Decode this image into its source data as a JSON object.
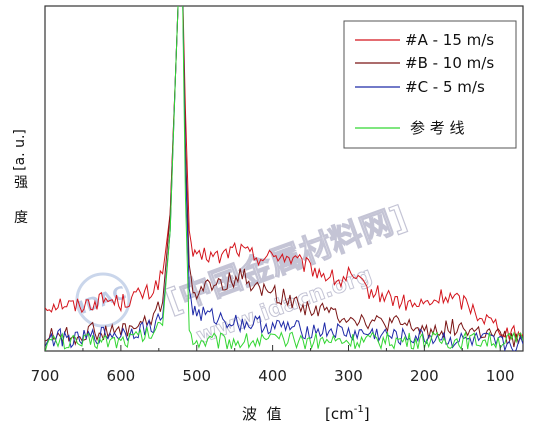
{
  "chart_data": {
    "type": "line",
    "ylabel": "[a. u.]",
    "ylabel_cn": [
      "强",
      "度"
    ],
    "xlabel_cn": "波  值",
    "xlabel_unit": "[cm",
    "xlabel_sup": "-1",
    "xlabel_close": "]",
    "x_reversed": true,
    "xlim": [
      700,
      70
    ],
    "ylim": [
      0,
      100
    ],
    "x_ticks": [
      700,
      600,
      500,
      400,
      300,
      200,
      100
    ],
    "grid": false,
    "legend_position": "top-right",
    "series": [
      {
        "name": "#A - 15 m/s",
        "color": "#d4141c",
        "points": [
          [
            700,
            13
          ],
          [
            680,
            14
          ],
          [
            660,
            13
          ],
          [
            640,
            14
          ],
          [
            620,
            15
          ],
          [
            600,
            14
          ],
          [
            580,
            16
          ],
          [
            560,
            17
          ],
          [
            545,
            22
          ],
          [
            535,
            40
          ],
          [
            528,
            80
          ],
          [
            523,
            110
          ],
          [
            519,
            110
          ],
          [
            515,
            70
          ],
          [
            510,
            35
          ],
          [
            505,
            28
          ],
          [
            500,
            26
          ],
          [
            490,
            28
          ],
          [
            470,
            27
          ],
          [
            450,
            30
          ],
          [
            430,
            28
          ],
          [
            410,
            27
          ],
          [
            390,
            28
          ],
          [
            370,
            26
          ],
          [
            350,
            24
          ],
          [
            330,
            22
          ],
          [
            310,
            20
          ],
          [
            300,
            22
          ],
          [
            290,
            20
          ],
          [
            270,
            17
          ],
          [
            250,
            16
          ],
          [
            230,
            14
          ],
          [
            210,
            13
          ],
          [
            190,
            14
          ],
          [
            175,
            16
          ],
          [
            160,
            15
          ],
          [
            145,
            14
          ],
          [
            130,
            11
          ],
          [
            115,
            9
          ],
          [
            100,
            7
          ],
          [
            85,
            5
          ],
          [
            70,
            5
          ]
        ]
      },
      {
        "name": "#B - 10 m/s",
        "color": "#7a1414",
        "points": [
          [
            700,
            4
          ],
          [
            680,
            5
          ],
          [
            660,
            4
          ],
          [
            640,
            6
          ],
          [
            620,
            5
          ],
          [
            600,
            6
          ],
          [
            580,
            7
          ],
          [
            560,
            9
          ],
          [
            545,
            14
          ],
          [
            535,
            40
          ],
          [
            528,
            80
          ],
          [
            523,
            110
          ],
          [
            519,
            110
          ],
          [
            515,
            60
          ],
          [
            510,
            25
          ],
          [
            505,
            18
          ],
          [
            500,
            17
          ],
          [
            480,
            19
          ],
          [
            460,
            20
          ],
          [
            440,
            22
          ],
          [
            420,
            18
          ],
          [
            400,
            17
          ],
          [
            380,
            15
          ],
          [
            360,
            13
          ],
          [
            340,
            12
          ],
          [
            320,
            11
          ],
          [
            300,
            10
          ],
          [
            280,
            9
          ],
          [
            260,
            8
          ],
          [
            240,
            8
          ],
          [
            220,
            7
          ],
          [
            200,
            6
          ],
          [
            180,
            6
          ],
          [
            160,
            7
          ],
          [
            140,
            6
          ],
          [
            120,
            5
          ],
          [
            100,
            4
          ],
          [
            85,
            3
          ],
          [
            70,
            3
          ]
        ]
      },
      {
        "name": "#C - 5 m/s",
        "color": "#1f2aa8",
        "points": [
          [
            700,
            3
          ],
          [
            680,
            4
          ],
          [
            660,
            3
          ],
          [
            640,
            4
          ],
          [
            620,
            5
          ],
          [
            600,
            5
          ],
          [
            580,
            6
          ],
          [
            560,
            7
          ],
          [
            545,
            10
          ],
          [
            535,
            35
          ],
          [
            528,
            80
          ],
          [
            523,
            110
          ],
          [
            519,
            110
          ],
          [
            515,
            55
          ],
          [
            510,
            18
          ],
          [
            505,
            12
          ],
          [
            500,
            11
          ],
          [
            480,
            10
          ],
          [
            460,
            9
          ],
          [
            440,
            8
          ],
          [
            420,
            8
          ],
          [
            400,
            7
          ],
          [
            380,
            7
          ],
          [
            360,
            6
          ],
          [
            340,
            6
          ],
          [
            320,
            6
          ],
          [
            300,
            5
          ],
          [
            280,
            5
          ],
          [
            260,
            5
          ],
          [
            240,
            4
          ],
          [
            220,
            4
          ],
          [
            200,
            4
          ],
          [
            180,
            4
          ],
          [
            160,
            3
          ],
          [
            140,
            3
          ],
          [
            120,
            3
          ],
          [
            100,
            2
          ],
          [
            85,
            2
          ],
          [
            70,
            2
          ]
        ]
      },
      {
        "name": "参  考 线",
        "color": "#33d633",
        "points": [
          [
            700,
            2
          ],
          [
            680,
            3
          ],
          [
            660,
            2
          ],
          [
            640,
            3
          ],
          [
            620,
            3
          ],
          [
            600,
            3
          ],
          [
            580,
            4
          ],
          [
            560,
            5
          ],
          [
            545,
            8
          ],
          [
            535,
            35
          ],
          [
            528,
            80
          ],
          [
            523,
            110
          ],
          [
            519,
            110
          ],
          [
            515,
            45
          ],
          [
            510,
            6
          ],
          [
            505,
            4
          ],
          [
            500,
            3
          ],
          [
            480,
            3
          ],
          [
            460,
            3
          ],
          [
            440,
            3
          ],
          [
            420,
            3
          ],
          [
            400,
            3
          ],
          [
            380,
            3
          ],
          [
            360,
            3
          ],
          [
            340,
            3
          ],
          [
            320,
            3
          ],
          [
            300,
            3
          ],
          [
            280,
            3
          ],
          [
            260,
            3
          ],
          [
            240,
            3
          ],
          [
            220,
            3
          ],
          [
            200,
            3
          ],
          [
            180,
            3
          ],
          [
            160,
            3
          ],
          [
            140,
            3
          ],
          [
            120,
            3
          ],
          [
            100,
            3
          ],
          [
            85,
            3
          ],
          [
            70,
            3
          ]
        ]
      }
    ]
  },
  "watermark": {
    "cn_text": "[中国金属材料网]",
    "url": "www.idacn.org",
    "logo": "IDAC"
  }
}
